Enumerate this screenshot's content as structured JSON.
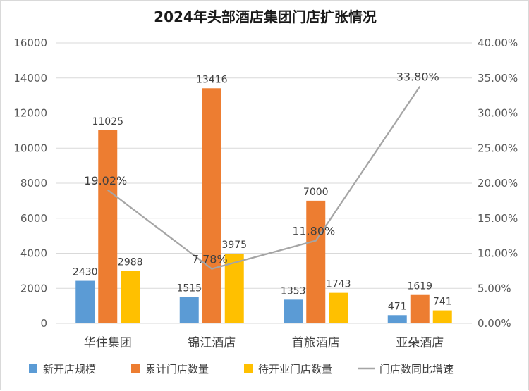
{
  "chart_data": {
    "type": "bar",
    "title": "2024年头部酒店集团门店扩张情况",
    "categories": [
      "华住集团",
      "锦江酒店",
      "首旅酒店",
      "亚朵酒店"
    ],
    "series": [
      {
        "name": "新开店规模",
        "kind": "bar",
        "axis": "left",
        "color": "#5b9bd5",
        "values": [
          2430,
          1515,
          1353,
          471
        ]
      },
      {
        "name": "累计门店数量",
        "kind": "bar",
        "axis": "left",
        "color": "#ed7d31",
        "values": [
          11025,
          13416,
          7000,
          1619
        ]
      },
      {
        "name": "待开业门店数量",
        "kind": "bar",
        "axis": "left",
        "color": "#ffc000",
        "values": [
          2988,
          3975,
          1743,
          741
        ]
      },
      {
        "name": "门店数同比增速",
        "kind": "line",
        "axis": "right",
        "color": "#a5a5a5",
        "values": [
          19.02,
          7.78,
          11.8,
          33.8
        ],
        "labels": [
          "19.02%",
          "7.78%",
          "11.80%",
          "33.80%"
        ]
      }
    ],
    "y_left": {
      "min": 0,
      "max": 16000,
      "ticks": [
        "0",
        "2000",
        "4000",
        "6000",
        "8000",
        "10000",
        "12000",
        "14000",
        "16000"
      ]
    },
    "y_right": {
      "min": 0,
      "max": 40,
      "ticks": [
        "0.00%",
        "5.00%",
        "10.00%",
        "15.00%",
        "20.00%",
        "25.00%",
        "30.00%",
        "35.00%",
        "40.00%"
      ]
    },
    "grid": true,
    "legend_position": "bottom"
  }
}
